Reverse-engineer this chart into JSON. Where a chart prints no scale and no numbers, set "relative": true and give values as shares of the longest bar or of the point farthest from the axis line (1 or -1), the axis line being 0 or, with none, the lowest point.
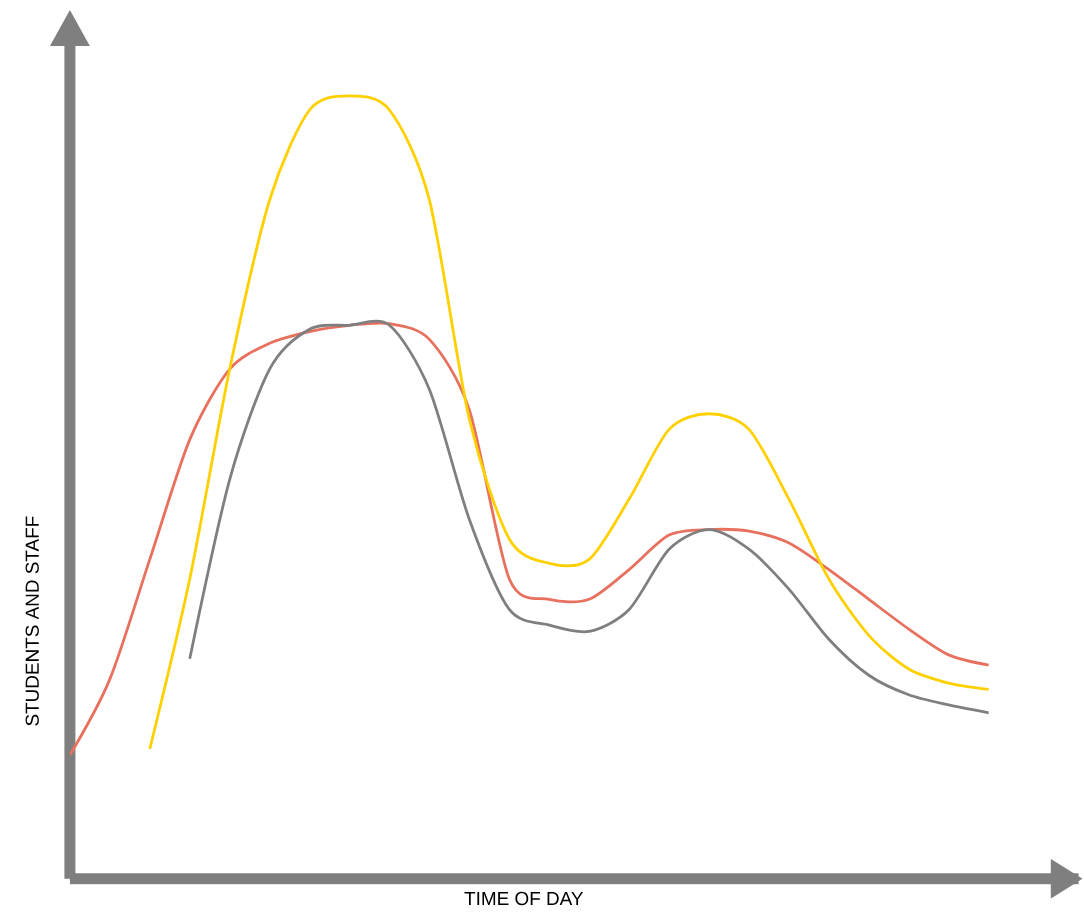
{
  "chart_data": {
    "type": "line",
    "relative": true,
    "xlabel": "TIME OF DAY",
    "ylabel": "STUDENTS AND STAFF",
    "marker": "none",
    "categories": [
      null,
      null,
      null,
      null,
      null,
      null,
      null,
      null,
      null,
      null,
      null,
      null,
      null,
      null,
      null,
      null,
      null,
      null,
      null,
      null,
      null,
      null,
      null,
      null,
      null
    ],
    "series": [
      {
        "color": "#e8705e",
        "values": [
          0.158,
          0.255,
          0.408,
          0.561,
          0.651,
          0.684,
          0.699,
          0.707,
          0.709,
          0.689,
          0.599,
          0.383,
          0.357,
          0.357,
          0.395,
          0.439,
          0.446,
          0.444,
          0.429,
          0.395,
          0.357,
          0.319,
          0.286,
          0.273,
          null
        ]
      },
      {
        "color": "#ffd000",
        "values": [
          null,
          null,
          0.166,
          0.383,
          0.651,
          0.867,
          0.982,
          1,
          0.982,
          0.867,
          0.587,
          0.434,
          0.403,
          0.408,
          0.485,
          0.574,
          0.594,
          0.574,
          0.485,
          0.383,
          0.311,
          0.268,
          0.25,
          0.242,
          null
        ]
      },
      {
        "color": "#7f7f7f",
        "values": [
          null,
          null,
          null,
          0.281,
          0.51,
          0.651,
          0.702,
          0.707,
          0.707,
          0.625,
          0.459,
          0.344,
          0.324,
          0.316,
          0.344,
          0.421,
          0.446,
          0.421,
          0.37,
          0.306,
          0.26,
          0.235,
          0.222,
          0.212,
          null
        ]
      }
    ]
  }
}
